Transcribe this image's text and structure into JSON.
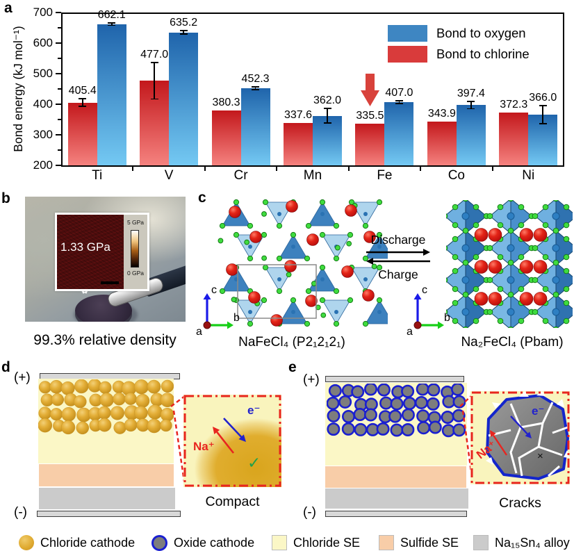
{
  "figure": {
    "panel_labels": {
      "a": "a",
      "b": "b",
      "c": "c",
      "d": "d",
      "e": "e"
    }
  },
  "chart_data": {
    "type": "bar",
    "title": "",
    "xlabel": "",
    "ylabel": "Bond energy (kJ mol⁻¹)",
    "ylim": [
      200,
      700
    ],
    "y_major_ticks": [
      200,
      300,
      400,
      500,
      600,
      700
    ],
    "y_minor_ticks": [
      250,
      350,
      450,
      550,
      650
    ],
    "grid": false,
    "legend_position": "top-right",
    "categories": [
      "Ti",
      "V",
      "Cr",
      "Mn",
      "Fe",
      "Co",
      "Ni"
    ],
    "series": [
      {
        "name": "Bond to chlorine",
        "color_top": "#c3181c",
        "color_bottom": "#f5827f",
        "legend_color": "#d93b3b",
        "values": [
          405.4,
          477.0,
          380.3,
          337.6,
          335.5,
          343.9,
          372.3
        ],
        "errors": [
          13,
          60,
          0,
          0,
          0,
          0,
          0
        ]
      },
      {
        "name": "Bond to oxygen",
        "color_top": "#1f64ab",
        "color_bottom": "#74c9f3",
        "legend_color": "#3e86c2",
        "values": [
          662.1,
          635.2,
          452.3,
          362.0,
          407.0,
          397.4,
          366.0
        ],
        "errors": [
          4,
          5,
          4,
          24,
          4,
          12,
          30
        ]
      }
    ],
    "annotation": {
      "type": "down-arrow",
      "category": "Fe",
      "series": "Bond to chlorine",
      "color": "#d8423b"
    }
  },
  "panel_b": {
    "inset_value": "1.33 GPa",
    "colorbar_top": "5 GPa",
    "colorbar_bottom": "0 GPa",
    "caption": "99.3% relative density"
  },
  "panel_c": {
    "left_label": "NaFeCl₄ (P2₁2₁2₁)",
    "right_label": "Na₂FeCl₄ (Pbam)",
    "forward": "Discharge",
    "backward": "Charge",
    "axis_a": "a",
    "axis_b": "b",
    "axis_c": "c"
  },
  "panel_d": {
    "plus": "(+)",
    "minus": "(-)",
    "ion": "Na⁺",
    "electron": "e⁻",
    "check": "✓",
    "inset_caption": "Compact"
  },
  "panel_e": {
    "plus": "(+)",
    "minus": "(-)",
    "ion": "Na⁺",
    "electron": "e⁻",
    "cross": "×",
    "inset_caption": "Cracks"
  },
  "bottom_legend": {
    "items": [
      {
        "label": "Chloride cathode",
        "swatch": "gold-circle"
      },
      {
        "label": "Oxide cathode",
        "swatch": "oxide-circle"
      },
      {
        "label": "Chloride SE",
        "swatch": "pale-yellow-square"
      },
      {
        "label": "Sulfide SE",
        "swatch": "peach-square"
      },
      {
        "label": "Na₁₅Sn₄ alloy",
        "swatch": "gray-square"
      }
    ]
  },
  "colors": {
    "chloride_se": "#fbf7c6",
    "sulfide_se": "#f8cda8",
    "alloy": "#cbcbcb",
    "electrode": "#d8d8d8",
    "oxide_border": "#1a1fd0",
    "oxide_fill": "#7d7d7d",
    "inset_border": "#e8251f",
    "ion_red": "#e8251f",
    "electron_blue": "#2222cc",
    "check_green": "#22a04a"
  }
}
